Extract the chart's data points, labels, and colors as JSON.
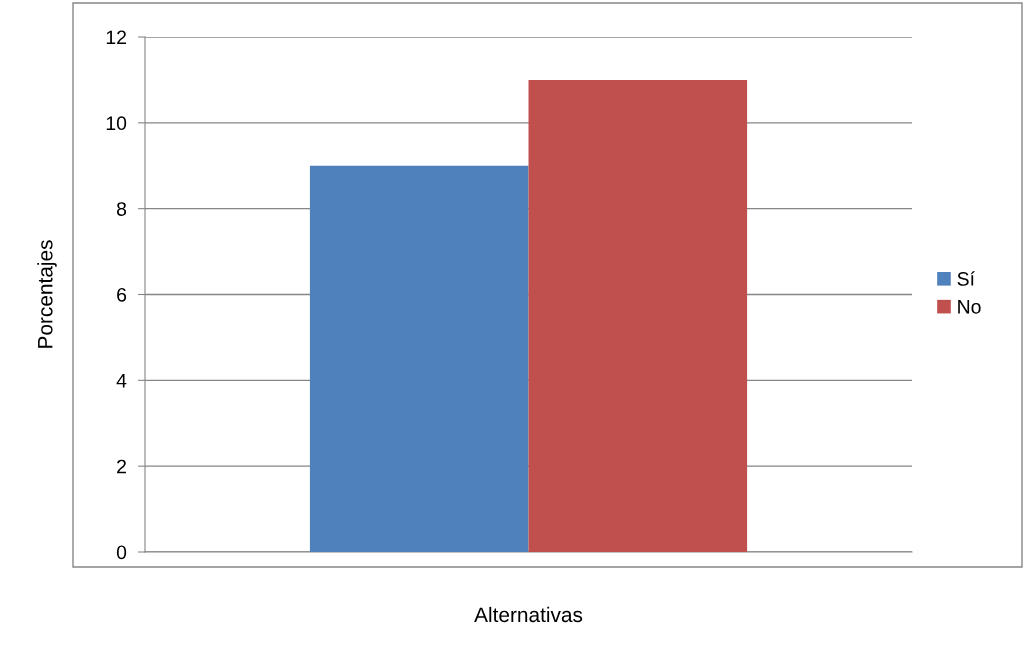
{
  "chart_data": {
    "type": "bar",
    "xlabel": "Alternativas",
    "ylabel": "Porcentajes",
    "categories": [
      null
    ],
    "series": [
      {
        "name": "Sí",
        "color": "#4f81bd",
        "values": [
          9
        ]
      },
      {
        "name": "No",
        "color": "#c0504d",
        "values": [
          11
        ]
      }
    ],
    "ylim": [
      0,
      12
    ],
    "yticks": [
      0,
      2,
      4,
      6,
      8,
      10,
      12
    ],
    "grid": "y",
    "legend": "right"
  }
}
